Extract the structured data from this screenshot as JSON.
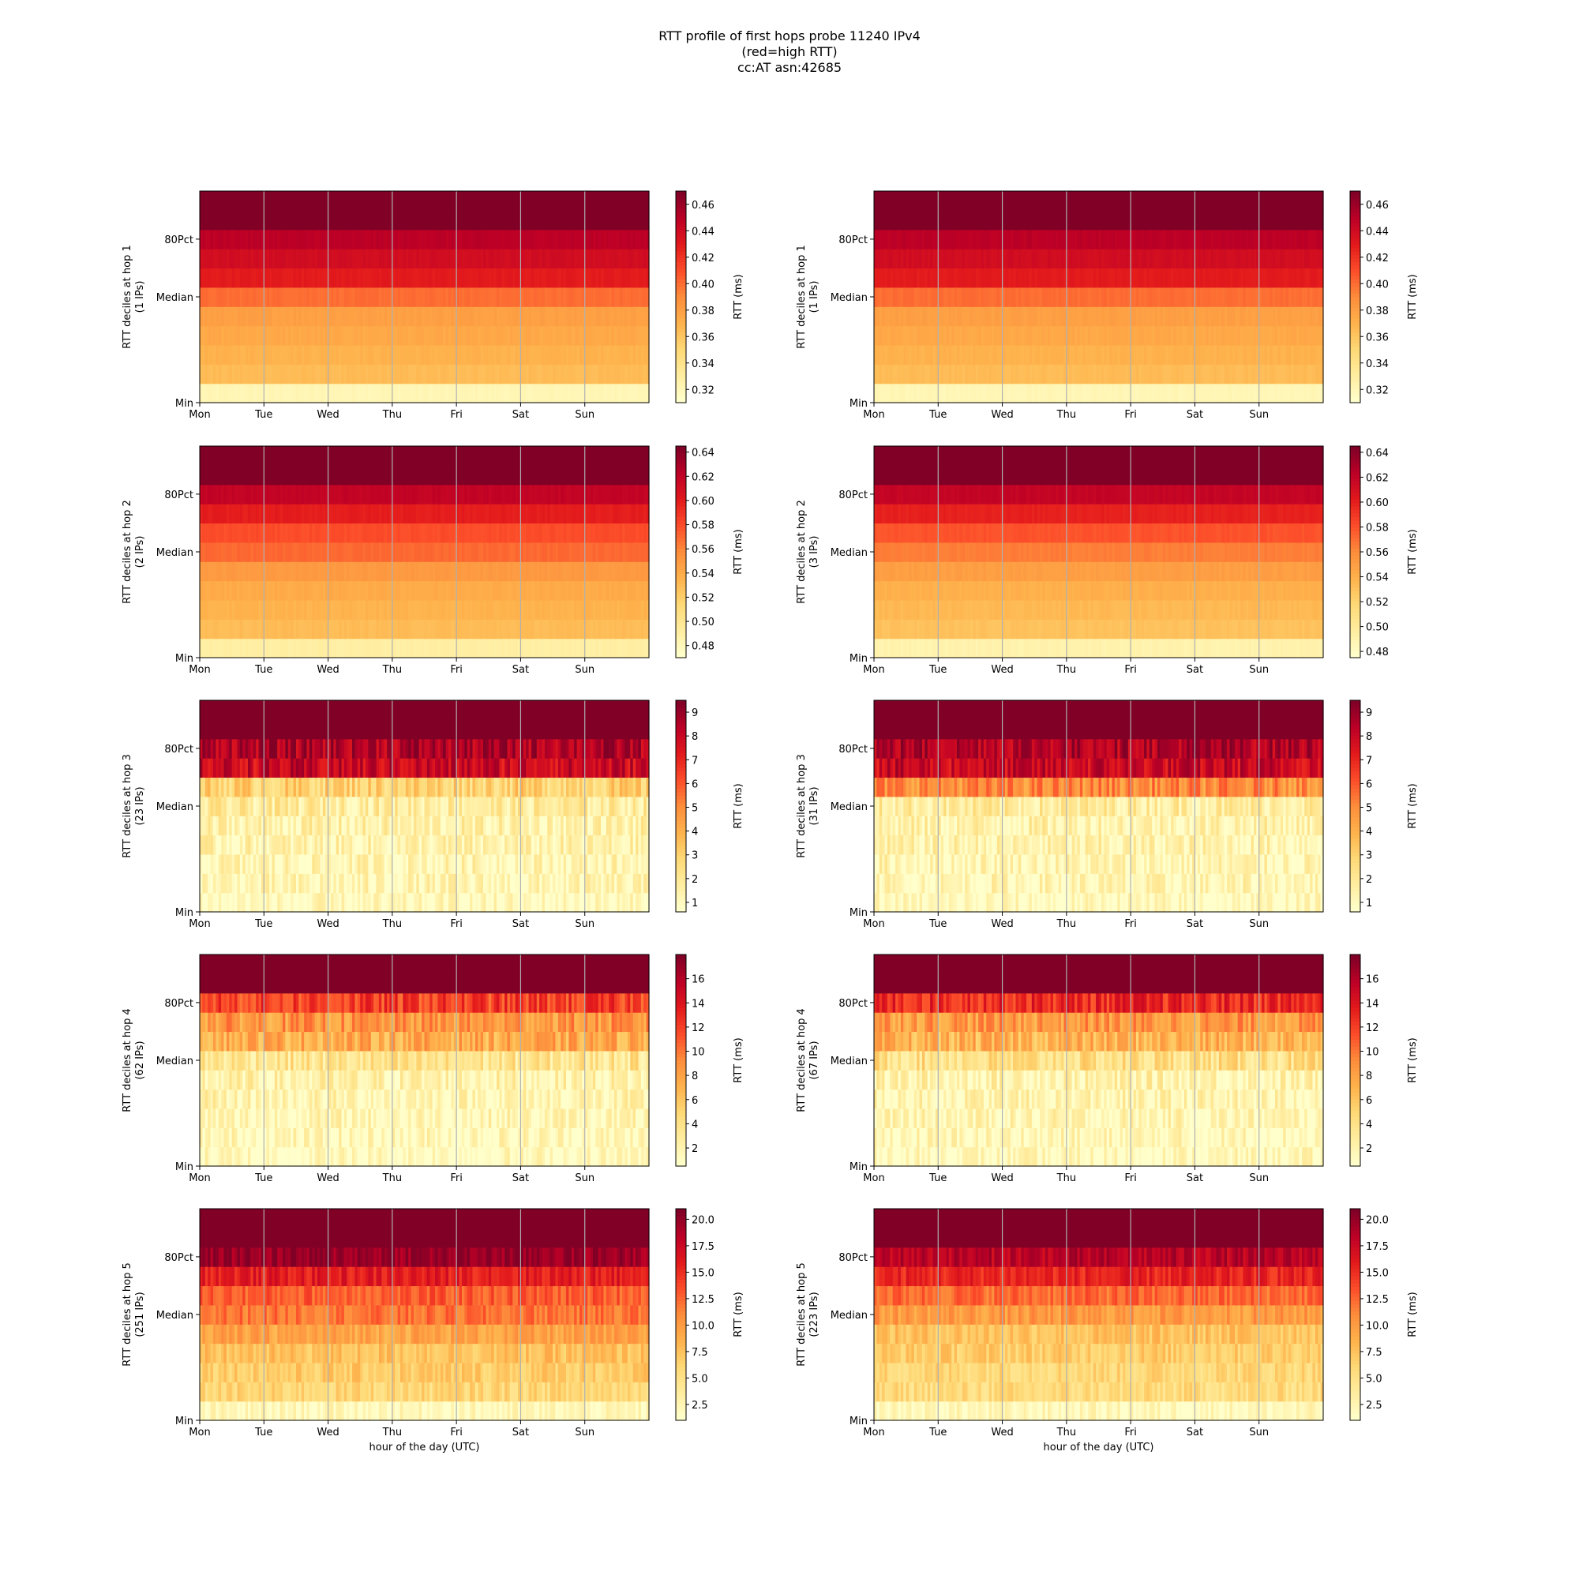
{
  "title": {
    "line1": "RTT profile of first hops probe 11240 IPv4",
    "line2": "(red=high RTT)",
    "line3": "cc:AT asn:42685"
  },
  "chart_data": [
    {
      "type": "heatmap",
      "hop": 1,
      "ylabel": "RTT deciles at hop 1",
      "ips_label": "(1 IPs)",
      "xlabel": "",
      "x_ticks": [
        "Mon",
        "Tue",
        "Wed",
        "Thu",
        "Fri",
        "Sat",
        "Sun"
      ],
      "y_ticks": [
        "Min",
        "Median",
        "80Pct"
      ],
      "colorbar_label": "RTT (ms)",
      "colorbar_ticks": [
        "0.32",
        "0.34",
        "0.36",
        "0.38",
        "0.40",
        "0.42",
        "0.44",
        "0.46"
      ],
      "vmin": 0.31,
      "vmax": 0.47,
      "decile_levels": [
        0.32,
        0.365,
        0.37,
        0.375,
        0.38,
        0.4,
        0.43,
        0.44,
        0.45,
        0.47,
        0.47
      ],
      "noise": 0.012,
      "colormap": "YlOrRd",
      "grid": true
    },
    {
      "type": "heatmap",
      "hop": 1,
      "ylabel": "RTT deciles at hop 1",
      "ips_label": "(1 IPs)",
      "xlabel": "",
      "x_ticks": [
        "Mon",
        "Tue",
        "Wed",
        "Thu",
        "Fri",
        "Sat",
        "Sun"
      ],
      "y_ticks": [
        "Min",
        "Median",
        "80Pct"
      ],
      "colorbar_label": "RTT (ms)",
      "colorbar_ticks": [
        "0.32",
        "0.34",
        "0.36",
        "0.38",
        "0.40",
        "0.42",
        "0.44",
        "0.46"
      ],
      "vmin": 0.31,
      "vmax": 0.47,
      "decile_levels": [
        0.32,
        0.365,
        0.37,
        0.375,
        0.38,
        0.4,
        0.43,
        0.44,
        0.45,
        0.47,
        0.47
      ],
      "noise": 0.012,
      "colormap": "YlOrRd",
      "grid": true
    },
    {
      "type": "heatmap",
      "hop": 2,
      "ylabel": "RTT deciles at hop 2",
      "ips_label": "(2 IPs)",
      "xlabel": "",
      "x_ticks": [
        "Mon",
        "Tue",
        "Wed",
        "Thu",
        "Fri",
        "Sat",
        "Sun"
      ],
      "y_ticks": [
        "Min",
        "Median",
        "80Pct"
      ],
      "colorbar_label": "RTT (ms)",
      "colorbar_ticks": [
        "0.48",
        "0.50",
        "0.52",
        "0.54",
        "0.56",
        "0.58",
        "0.60",
        "0.62",
        "0.64"
      ],
      "vmin": 0.47,
      "vmax": 0.645,
      "decile_levels": [
        0.49,
        0.53,
        0.535,
        0.54,
        0.55,
        0.57,
        0.58,
        0.6,
        0.62,
        0.645,
        0.645
      ],
      "noise": 0.012,
      "colormap": "YlOrRd",
      "grid": true
    },
    {
      "type": "heatmap",
      "hop": 2,
      "ylabel": "RTT deciles at hop 2",
      "ips_label": "(3 IPs)",
      "xlabel": "",
      "x_ticks": [
        "Mon",
        "Tue",
        "Wed",
        "Thu",
        "Fri",
        "Sat",
        "Sun"
      ],
      "y_ticks": [
        "Min",
        "Median",
        "80Pct"
      ],
      "colorbar_label": "RTT (ms)",
      "colorbar_ticks": [
        "0.48",
        "0.50",
        "0.52",
        "0.54",
        "0.56",
        "0.58",
        "0.60",
        "0.62",
        "0.64"
      ],
      "vmin": 0.475,
      "vmax": 0.645,
      "decile_levels": [
        0.49,
        0.53,
        0.535,
        0.54,
        0.55,
        0.565,
        0.58,
        0.6,
        0.62,
        0.645,
        0.645
      ],
      "noise": 0.012,
      "colormap": "YlOrRd",
      "grid": true
    },
    {
      "type": "heatmap",
      "hop": 3,
      "ylabel": "RTT deciles at hop 3",
      "ips_label": "(23 IPs)",
      "xlabel": "",
      "x_ticks": [
        "Mon",
        "Tue",
        "Wed",
        "Thu",
        "Fri",
        "Sat",
        "Sun"
      ],
      "y_ticks": [
        "Min",
        "Median",
        "80Pct"
      ],
      "colorbar_label": "RTT (ms)",
      "colorbar_ticks": [
        "1",
        "2",
        "3",
        "4",
        "5",
        "6",
        "7",
        "8",
        "9"
      ],
      "vmin": 0.6,
      "vmax": 9.5,
      "decile_levels": [
        0.8,
        1.1,
        1.2,
        1.3,
        1.4,
        1.8,
        3.0,
        8.0,
        8.6,
        9.5,
        9.5
      ],
      "noise": 0.12,
      "colormap": "YlOrRd",
      "grid": true
    },
    {
      "type": "heatmap",
      "hop": 3,
      "ylabel": "RTT deciles at hop 3",
      "ips_label": "(31 IPs)",
      "xlabel": "",
      "x_ticks": [
        "Mon",
        "Tue",
        "Wed",
        "Thu",
        "Fri",
        "Sat",
        "Sun"
      ],
      "y_ticks": [
        "Min",
        "Median",
        "80Pct"
      ],
      "colorbar_label": "RTT (ms)",
      "colorbar_ticks": [
        "1",
        "2",
        "3",
        "4",
        "5",
        "6",
        "7",
        "8",
        "9"
      ],
      "vmin": 0.6,
      "vmax": 9.5,
      "decile_levels": [
        0.8,
        1.1,
        1.2,
        1.3,
        1.4,
        1.8,
        5.0,
        8.0,
        8.6,
        9.5,
        9.5
      ],
      "noise": 0.12,
      "colormap": "YlOrRd",
      "grid": true
    },
    {
      "type": "heatmap",
      "hop": 4,
      "ylabel": "RTT deciles at hop 4",
      "ips_label": "(62 IPs)",
      "xlabel": "",
      "x_ticks": [
        "Mon",
        "Tue",
        "Wed",
        "Thu",
        "Fri",
        "Sat",
        "Sun"
      ],
      "y_ticks": [
        "Min",
        "Median",
        "80Pct"
      ],
      "colorbar_label": "RTT (ms)",
      "colorbar_ticks": [
        "2",
        "4",
        "6",
        "8",
        "10",
        "12",
        "14",
        "16"
      ],
      "vmin": 0.5,
      "vmax": 18,
      "decile_levels": [
        1.0,
        1.3,
        1.5,
        1.7,
        2.0,
        3.5,
        7.5,
        8.5,
        12.0,
        18,
        18
      ],
      "noise": 0.12,
      "colormap": "YlOrRd",
      "grid": true
    },
    {
      "type": "heatmap",
      "hop": 4,
      "ylabel": "RTT deciles at hop 4",
      "ips_label": "(67 IPs)",
      "xlabel": "",
      "x_ticks": [
        "Mon",
        "Tue",
        "Wed",
        "Thu",
        "Fri",
        "Sat",
        "Sun"
      ],
      "y_ticks": [
        "Min",
        "Median",
        "80Pct"
      ],
      "colorbar_label": "RTT (ms)",
      "colorbar_ticks": [
        "2",
        "4",
        "6",
        "8",
        "10",
        "12",
        "14",
        "16"
      ],
      "vmin": 0.5,
      "vmax": 18,
      "decile_levels": [
        1.0,
        1.3,
        1.5,
        1.7,
        2.0,
        4.0,
        7.0,
        8.5,
        13.0,
        18,
        18
      ],
      "noise": 0.12,
      "colormap": "YlOrRd",
      "grid": true
    },
    {
      "type": "heatmap",
      "hop": 5,
      "ylabel": "RTT deciles at hop 5",
      "ips_label": "(251 IPs)",
      "xlabel": "hour of the day (UTC)",
      "x_ticks": [
        "Mon",
        "Tue",
        "Wed",
        "Thu",
        "Fri",
        "Sat",
        "Sun"
      ],
      "y_ticks": [
        "Min",
        "Median",
        "80Pct"
      ],
      "colorbar_label": "RTT (ms)",
      "colorbar_ticks": [
        "2.5",
        "5.0",
        "7.5",
        "10.0",
        "12.5",
        "15.0",
        "17.5",
        "20.0"
      ],
      "vmin": 1,
      "vmax": 21,
      "decile_levels": [
        2.0,
        6.0,
        6.8,
        7.5,
        9.5,
        12.0,
        13.0,
        16.0,
        20.0,
        21,
        21
      ],
      "noise": 0.08,
      "colormap": "YlOrRd",
      "grid": true
    },
    {
      "type": "heatmap",
      "hop": 5,
      "ylabel": "RTT deciles at hop 5",
      "ips_label": "(223 IPs)",
      "xlabel": "hour of the day (UTC)",
      "x_ticks": [
        "Mon",
        "Tue",
        "Wed",
        "Thu",
        "Fri",
        "Sat",
        "Sun"
      ],
      "y_ticks": [
        "Min",
        "Median",
        "80Pct"
      ],
      "colorbar_label": "RTT (ms)",
      "colorbar_ticks": [
        "2.5",
        "5.0",
        "7.5",
        "10.0",
        "12.5",
        "15.0",
        "17.5",
        "20.0"
      ],
      "vmin": 1,
      "vmax": 21,
      "decile_levels": [
        2.0,
        5.5,
        6.0,
        6.8,
        7.5,
        10.0,
        12.5,
        15.5,
        18.5,
        21,
        21
      ],
      "noise": 0.08,
      "colormap": "YlOrRd",
      "grid": true
    }
  ]
}
